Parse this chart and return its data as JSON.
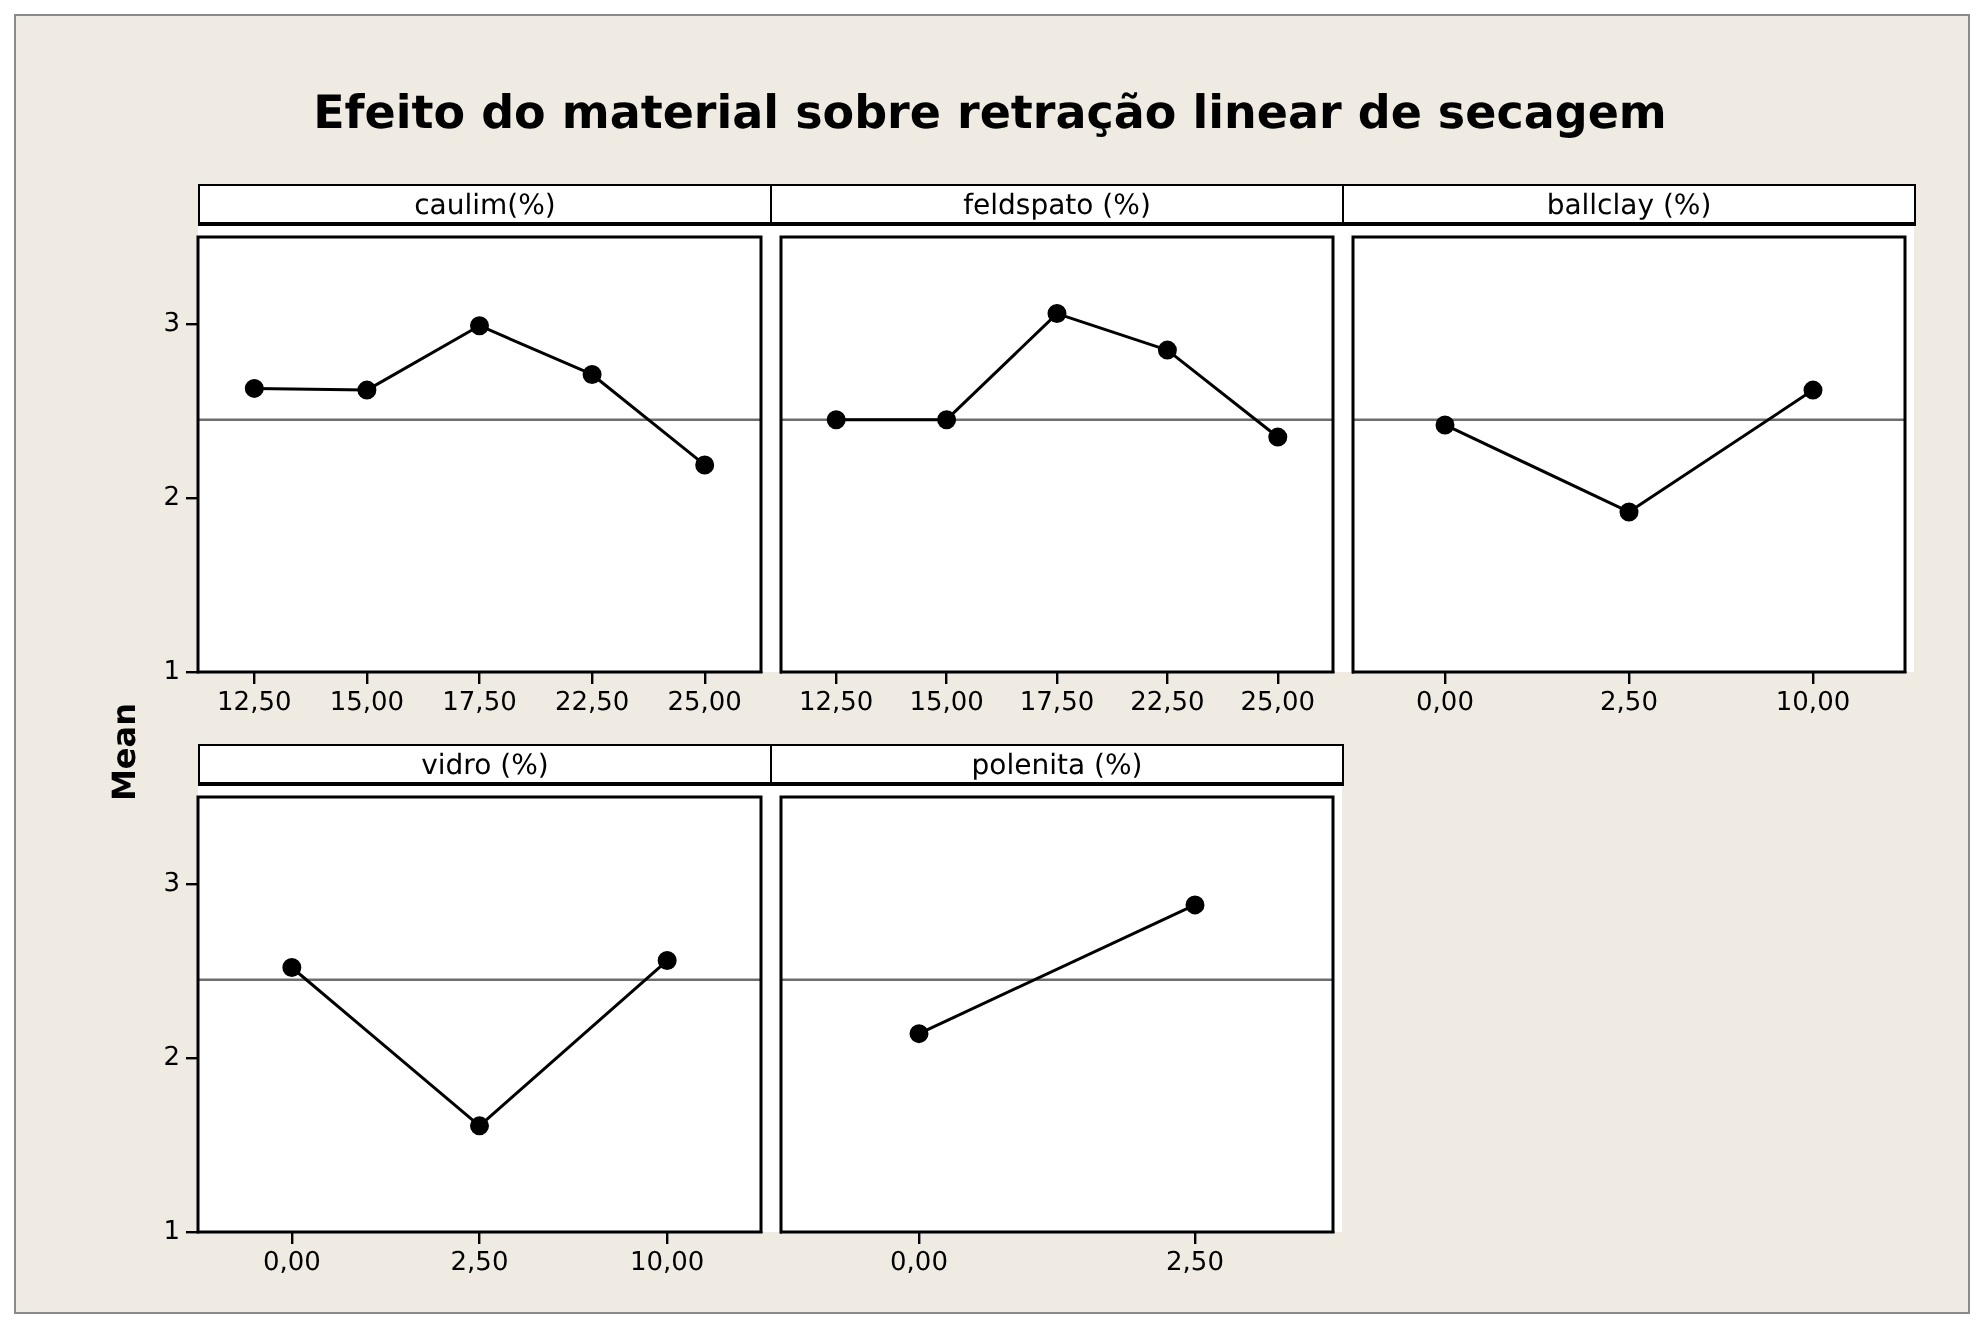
{
  "chart_data": [
    {
      "type": "line",
      "title": "Efeito do material sobre retração linear de secagem",
      "ylabel": "Mean",
      "subtitle": "caulim(%)",
      "categories": [
        "12,50",
        "15,00",
        "17,50",
        "22,50",
        "25,00"
      ],
      "values": [
        2.63,
        2.62,
        2.99,
        2.71,
        2.19
      ],
      "color": "#000000",
      "marker": "circle",
      "ylim": [
        1,
        3.5
      ],
      "yticks": [
        1,
        2,
        3
      ],
      "ref_lines": [
        {
          "axis": "y",
          "value": 2.45,
          "color": "#6e6e6e"
        }
      ]
    },
    {
      "type": "line",
      "subtitle": "feldspato (%)",
      "categories": [
        "12,50",
        "15,00",
        "17,50",
        "22,50",
        "25,00"
      ],
      "values": [
        2.45,
        2.45,
        3.06,
        2.85,
        2.35
      ],
      "color": "#000000",
      "marker": "circle",
      "ylim": [
        1,
        3.5
      ],
      "yticks": [
        1,
        2,
        3
      ],
      "tick_labels": "x",
      "ref_lines": [
        {
          "axis": "y",
          "value": 2.45,
          "color": "#6e6e6e"
        }
      ]
    },
    {
      "type": "line",
      "subtitle": "ballclay (%)",
      "categories": [
        "0,00",
        "2,50",
        "10,00"
      ],
      "values": [
        2.42,
        1.92,
        2.62
      ],
      "color": "#000000",
      "marker": "circle",
      "ylim": [
        1,
        3.5
      ],
      "yticks": [
        1,
        2,
        3
      ],
      "tick_labels": "x",
      "ref_lines": [
        {
          "axis": "y",
          "value": 2.45,
          "color": "#6e6e6e"
        }
      ]
    },
    {
      "type": "line",
      "subtitle": "vidro (%)",
      "categories": [
        "0,00",
        "2,50",
        "10,00"
      ],
      "values": [
        2.52,
        1.61,
        2.56
      ],
      "color": "#000000",
      "marker": "circle",
      "ylim": [
        1,
        3.5
      ],
      "yticks": [
        1,
        2,
        3
      ],
      "ref_lines": [
        {
          "axis": "y",
          "value": 2.45,
          "color": "#6e6e6e"
        }
      ]
    },
    {
      "type": "line",
      "subtitle": "polenita (%)",
      "categories": [
        "0,00",
        "2,50"
      ],
      "values": [
        2.14,
        2.88
      ],
      "color": "#000000",
      "marker": "circle",
      "ylim": [
        1,
        3.5
      ],
      "yticks": [
        1,
        2,
        3
      ],
      "tick_labels": "x",
      "ref_lines": [
        {
          "axis": "y",
          "value": 2.45,
          "color": "#6e6e6e"
        }
      ]
    }
  ]
}
